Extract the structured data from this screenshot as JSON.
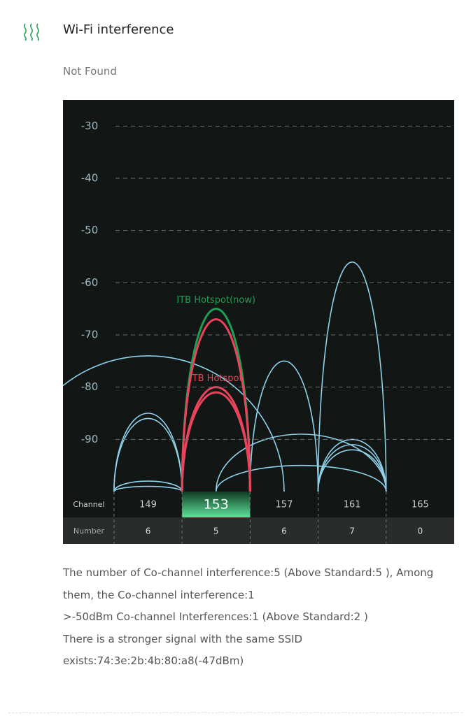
{
  "header": {
    "title": "Wi-Fi interference",
    "status": "Not Found"
  },
  "chart_data": {
    "type": "arc",
    "ylim": [
      -100,
      -25
    ],
    "yticks": [
      -30,
      -40,
      -50,
      -60,
      -70,
      -80,
      -90
    ],
    "xlim": [
      144,
      167
    ],
    "row_labels": [
      "Channel",
      "Number"
    ],
    "categories": [
      149,
      153,
      157,
      161,
      165
    ],
    "counts": [
      6,
      5,
      6,
      7,
      0
    ],
    "selected": 153,
    "grid": true,
    "networks": [
      {
        "channel": 149,
        "span": 16,
        "signal": -74,
        "color": "#8fd0ea"
      },
      {
        "channel": 149,
        "span": 4,
        "signal": -85,
        "color": "#8fd0ea"
      },
      {
        "channel": 149,
        "span": 4,
        "signal": -86,
        "color": "#8fd0ea"
      },
      {
        "channel": 149,
        "span": 4,
        "signal": -98,
        "color": "#8fd0ea"
      },
      {
        "channel": 149,
        "span": 4,
        "signal": -99,
        "color": "#8fd0ea"
      },
      {
        "channel": 157,
        "span": 4,
        "signal": -75,
        "color": "#8fd0ea"
      },
      {
        "channel": 158,
        "span": 10,
        "signal": -89,
        "color": "#8fd0ea"
      },
      {
        "channel": 158,
        "span": 10,
        "signal": -95,
        "color": "#8fd0ea"
      },
      {
        "channel": 161,
        "span": 4,
        "signal": -56,
        "color": "#8fd0ea"
      },
      {
        "channel": 161,
        "span": 4,
        "signal": -90,
        "color": "#8fd0ea"
      },
      {
        "channel": 161,
        "span": 4,
        "signal": -91,
        "color": "#8fd0ea"
      },
      {
        "channel": 161,
        "span": 4,
        "signal": -92,
        "color": "#8fd0ea"
      },
      {
        "channel": 153,
        "span": 4,
        "signal": -65,
        "color": "#1f9e55",
        "label": "ITB Hotspot(now)"
      },
      {
        "channel": 153,
        "span": 4,
        "signal": -67,
        "color": "#e8445c"
      },
      {
        "channel": 153,
        "span": 4,
        "signal": -80,
        "color": "#e8445c",
        "label": "ITB Hotspot"
      },
      {
        "channel": 153,
        "span": 4,
        "signal": -81,
        "color": "#e8445c"
      }
    ]
  },
  "details": [
    "The number of Co-channel interference:5 (Above Standard:5 ), Among them, the Co-channel interference:1",
    ">-50dBm Co-channel Interferences:1 (Above Standard:2 )",
    "There is a stronger signal with the same SSID exists:74:3e:2b:4b:80:a8(-47dBm)"
  ]
}
